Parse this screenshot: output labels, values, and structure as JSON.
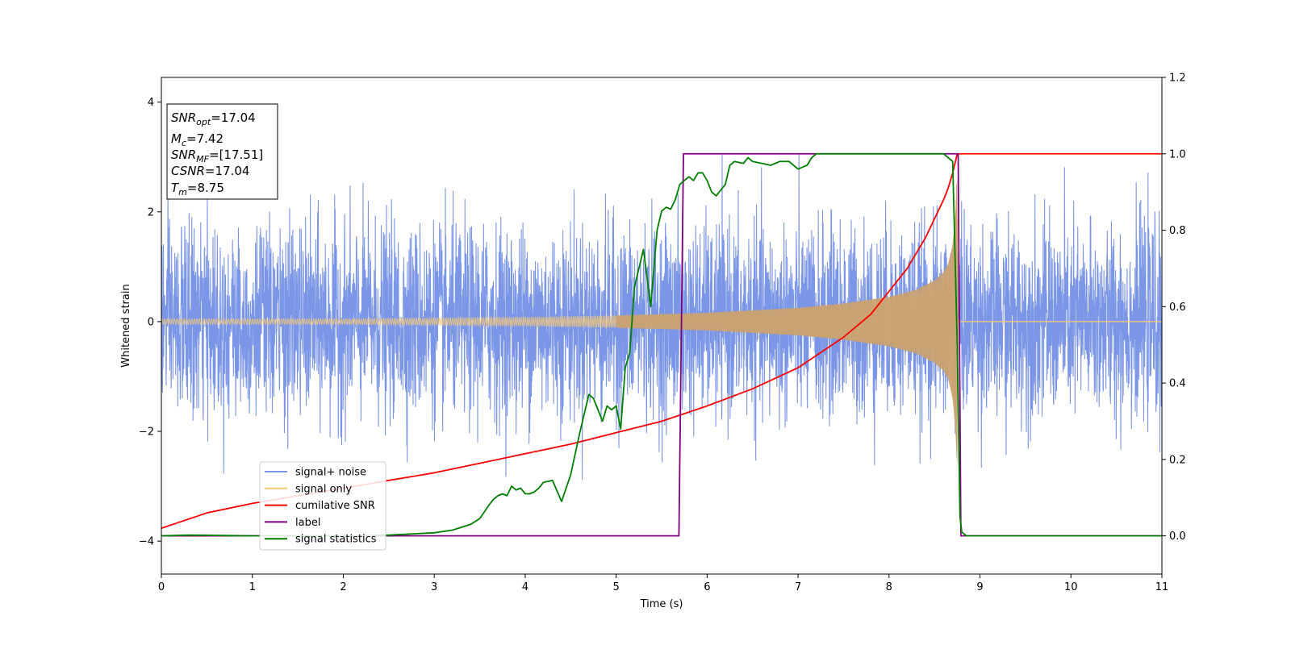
{
  "chart_data": {
    "type": "line",
    "title": "",
    "xlabel": "Time (s)",
    "ylabel_left": "Whitened strain",
    "ylabel_right": "",
    "xlim": [
      0,
      11
    ],
    "ylim_left": [
      -4.6,
      4.45
    ],
    "ylim_right": [
      -0.1,
      1.2
    ],
    "xticks": [
      0,
      1,
      2,
      3,
      4,
      5,
      6,
      7,
      8,
      9,
      10,
      11
    ],
    "yticks_left": [
      -4,
      -2,
      0,
      2,
      4
    ],
    "yticks_right": [
      "0.0",
      "0.2",
      "0.4",
      "0.6",
      "0.8",
      "1.0",
      "1.2"
    ],
    "grid": false,
    "legend_position": "lower-left",
    "annotation": [
      {
        "var": "SNR",
        "sub": "opt",
        "value": "=17.04"
      },
      {
        "var": "M",
        "sub": "c",
        "value": "=7.42"
      },
      {
        "var": "SNR",
        "sub": "MF",
        "value": "=[17.51]"
      },
      {
        "var": "CSNR",
        "sub": "",
        "value": "=17.04"
      },
      {
        "var": "T",
        "sub": "m",
        "value": "=8.75"
      }
    ],
    "series": [
      {
        "name": "signal+ noise",
        "axis": "left",
        "color": "#7b96e6",
        "noise_sigma": 1.0,
        "noise_peak": 3.55,
        "time_range": [
          0,
          11
        ]
      },
      {
        "name": "signal only",
        "axis": "left",
        "color": "#f5c878",
        "envelope": [
          [
            0,
            0.05
          ],
          [
            2,
            0.05
          ],
          [
            4,
            0.08
          ],
          [
            5,
            0.11
          ],
          [
            6,
            0.16
          ],
          [
            7,
            0.25
          ],
          [
            7.5,
            0.33
          ],
          [
            8,
            0.45
          ],
          [
            8.3,
            0.58
          ],
          [
            8.5,
            0.75
          ],
          [
            8.6,
            0.9
          ],
          [
            8.65,
            1.05
          ],
          [
            8.7,
            1.4
          ],
          [
            8.73,
            2.0
          ],
          [
            8.75,
            2.8
          ],
          [
            8.76,
            0
          ],
          [
            11,
            0
          ]
        ]
      },
      {
        "name": "cumilative SNR",
        "axis": "right",
        "color": "#ff0000",
        "x": [
          0,
          0.5,
          1,
          1.5,
          2,
          2.5,
          3,
          3.5,
          4,
          4.5,
          5,
          5.5,
          6,
          6.5,
          7,
          7.5,
          7.8,
          8,
          8.2,
          8.4,
          8.5,
          8.6,
          8.65,
          8.7,
          8.73,
          8.75,
          8.8,
          9,
          10,
          11
        ],
        "y": [
          0.02,
          0.06,
          0.085,
          0.105,
          0.125,
          0.145,
          0.165,
          0.19,
          0.215,
          0.24,
          0.27,
          0.3,
          0.34,
          0.385,
          0.44,
          0.52,
          0.58,
          0.64,
          0.7,
          0.78,
          0.83,
          0.88,
          0.91,
          0.95,
          0.98,
          1.0,
          1.0,
          1.0,
          1.0,
          1.0
        ]
      },
      {
        "name": "label",
        "axis": "right",
        "color": "#800080",
        "x": [
          0,
          5.69,
          5.74,
          8.76,
          8.79,
          11
        ],
        "y": [
          0,
          0,
          1,
          1,
          0,
          0
        ]
      },
      {
        "name": "signal statistics",
        "axis": "right",
        "color": "#008000",
        "x": [
          0,
          0.3,
          1,
          2,
          2.5,
          3,
          3.2,
          3.4,
          3.5,
          3.6,
          3.65,
          3.7,
          3.75,
          3.8,
          3.85,
          3.9,
          3.95,
          4.0,
          4.05,
          4.1,
          4.15,
          4.2,
          4.3,
          4.4,
          4.5,
          4.6,
          4.7,
          4.75,
          4.8,
          4.85,
          4.9,
          4.95,
          5.0,
          5.05,
          5.1,
          5.15,
          5.2,
          5.3,
          5.38,
          5.45,
          5.5,
          5.55,
          5.6,
          5.65,
          5.7,
          5.75,
          5.8,
          5.85,
          5.9,
          5.95,
          6.0,
          6.05,
          6.1,
          6.2,
          6.25,
          6.3,
          6.4,
          6.45,
          6.5,
          6.6,
          6.7,
          6.8,
          6.9,
          7.0,
          7.1,
          7.15,
          7.2,
          7.3,
          7.4,
          7.5,
          7.7,
          8.0,
          8.3,
          8.5,
          8.6,
          8.7,
          8.75,
          8.78,
          8.8,
          8.85,
          9,
          10,
          11
        ],
        "y": [
          0,
          0.002,
          0,
          0,
          0.002,
          0.008,
          0.015,
          0.03,
          0.045,
          0.08,
          0.095,
          0.105,
          0.11,
          0.105,
          0.13,
          0.12,
          0.125,
          0.11,
          0.11,
          0.115,
          0.125,
          0.14,
          0.145,
          0.09,
          0.16,
          0.27,
          0.37,
          0.36,
          0.33,
          0.3,
          0.34,
          0.33,
          0.34,
          0.28,
          0.44,
          0.48,
          0.65,
          0.75,
          0.6,
          0.8,
          0.85,
          0.86,
          0.855,
          0.88,
          0.92,
          0.93,
          0.94,
          0.93,
          0.95,
          0.95,
          0.93,
          0.9,
          0.89,
          0.92,
          0.97,
          0.98,
          0.975,
          0.99,
          0.98,
          0.975,
          0.97,
          0.98,
          0.98,
          0.96,
          0.97,
          0.99,
          1.0,
          1.0,
          1.0,
          1.0,
          1.0,
          1.0,
          1.0,
          1.0,
          1.0,
          0.98,
          0.5,
          0.05,
          0.01,
          0,
          0,
          0,
          0
        ]
      }
    ]
  }
}
